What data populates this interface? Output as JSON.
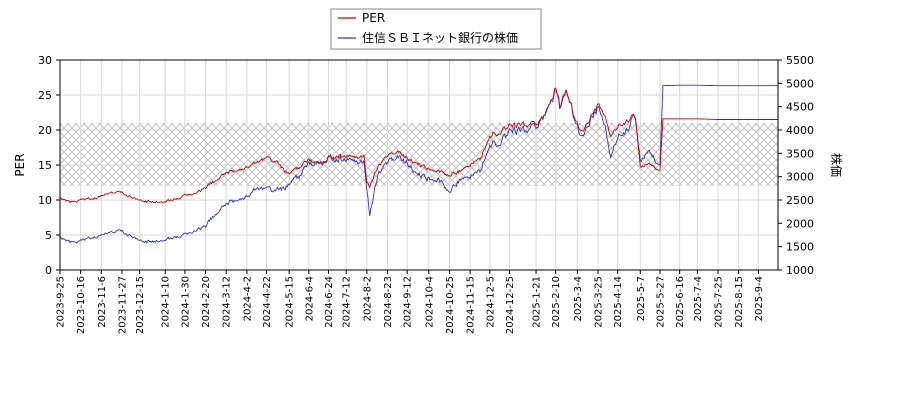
{
  "chart_data": {
    "type": "line",
    "legend": {
      "placement": "top-center",
      "entries": [
        {
          "name": "PER",
          "color": "#cc0000"
        },
        {
          "name": "住信ＳＢＩネット銀行の株価",
          "color": "#3333cc"
        }
      ]
    },
    "left_axis": {
      "label": "PER",
      "ylim": [
        0,
        30
      ],
      "ticks": [
        "0",
        "5",
        "10",
        "15",
        "20",
        "25",
        "30"
      ]
    },
    "right_axis": {
      "label": "株価",
      "ylim": [
        1000,
        5500
      ],
      "ticks": [
        "1000",
        "1500",
        "2000",
        "2500",
        "3000",
        "3500",
        "4000",
        "4500",
        "5000",
        "5500"
      ]
    },
    "x_axis": {
      "range": [
        "2023-09-25",
        "2025-09-24"
      ],
      "tick_labels": [
        "2023-9-25",
        "2023-10-16",
        "2023-11-6",
        "2023-11-27",
        "2023-12-15",
        "2024-1-10",
        "2024-1-30",
        "2024-2-20",
        "2024-3-12",
        "2024-4-2",
        "2024-4-22",
        "2024-5-15",
        "2024-6-4",
        "2024-6-24",
        "2024-7-12",
        "2024-8-2",
        "2024-8-23",
        "2024-9-12",
        "2024-10-4",
        "2024-10-25",
        "2024-11-15",
        "2024-12-5",
        "2024-12-25",
        "2025-1-21",
        "2025-2-10",
        "2025-3-4",
        "2025-3-25",
        "2025-4-14",
        "2025-5-7",
        "2025-5-27",
        "2025-6-16",
        "2025-7-4",
        "2025-7-25",
        "2025-8-15",
        "2025-9-4"
      ]
    },
    "grid": true,
    "hatched_band": {
      "axis": "left",
      "from": 12,
      "to": 21
    },
    "series": [
      {
        "name": "PER",
        "axis": "left",
        "color": "#cc0000",
        "x": [
          "2023-09-25",
          "2023-10-05",
          "2023-10-16",
          "2023-10-27",
          "2023-11-06",
          "2023-11-16",
          "2023-11-27",
          "2023-12-06",
          "2023-12-15",
          "2023-12-26",
          "2024-01-10",
          "2024-01-20",
          "2024-01-30",
          "2024-02-10",
          "2024-02-20",
          "2024-03-01",
          "2024-03-12",
          "2024-03-22",
          "2024-04-02",
          "2024-04-12",
          "2024-04-22",
          "2024-05-02",
          "2024-05-15",
          "2024-05-25",
          "2024-06-04",
          "2024-06-14",
          "2024-06-24",
          "2024-07-03",
          "2024-07-12",
          "2024-07-22",
          "2024-07-30",
          "2024-08-02",
          "2024-08-05",
          "2024-08-13",
          "2024-08-23",
          "2024-09-02",
          "2024-09-12",
          "2024-09-22",
          "2024-10-04",
          "2024-10-14",
          "2024-10-25",
          "2024-11-05",
          "2024-11-15",
          "2024-11-25",
          "2024-12-05",
          "2024-12-15",
          "2024-12-25",
          "2025-01-08",
          "2025-01-21",
          "2025-01-31",
          "2025-02-10",
          "2025-02-14",
          "2025-02-20",
          "2025-03-04",
          "2025-03-10",
          "2025-03-18",
          "2025-03-25",
          "2025-04-01",
          "2025-04-07",
          "2025-04-14",
          "2025-04-24",
          "2025-05-02",
          "2025-05-07",
          "2025-05-15",
          "2025-05-22",
          "2025-05-27",
          "2025-05-30",
          "2025-06-16",
          "2025-07-04",
          "2025-07-25",
          "2025-08-15",
          "2025-09-04",
          "2025-09-24"
        ],
        "values": [
          10.3,
          9.6,
          10.0,
          10.2,
          10.6,
          11.0,
          11.0,
          10.6,
          9.8,
          9.7,
          9.8,
          10.1,
          10.6,
          11.0,
          11.8,
          12.8,
          13.8,
          14.2,
          14.8,
          15.4,
          15.8,
          15.4,
          13.6,
          14.6,
          15.8,
          15.2,
          16.0,
          16.2,
          16.4,
          16.0,
          16.2,
          12.5,
          12.0,
          14.8,
          16.5,
          16.8,
          16.0,
          15.2,
          14.4,
          14.0,
          13.6,
          14.2,
          15.0,
          15.8,
          19.2,
          19.8,
          20.5,
          20.8,
          21.0,
          22.0,
          26.0,
          23.0,
          25.5,
          21.0,
          19.5,
          22.0,
          23.5,
          22.5,
          19.0,
          20.5,
          21.5,
          22.0,
          15.0,
          15.0,
          14.8,
          14.4,
          21.6,
          21.6,
          21.6,
          21.5,
          21.5,
          21.5,
          21.5
        ]
      },
      {
        "name": "住信ＳＢＩネット銀行の株価",
        "axis": "right",
        "color": "#3333cc",
        "x": [
          "2023-09-25",
          "2023-10-05",
          "2023-10-16",
          "2023-10-27",
          "2023-11-06",
          "2023-11-16",
          "2023-11-27",
          "2023-12-06",
          "2023-12-15",
          "2023-12-26",
          "2024-01-10",
          "2024-01-20",
          "2024-01-30",
          "2024-02-10",
          "2024-02-20",
          "2024-03-01",
          "2024-03-12",
          "2024-03-22",
          "2024-04-02",
          "2024-04-12",
          "2024-04-22",
          "2024-05-02",
          "2024-05-15",
          "2024-05-25",
          "2024-06-04",
          "2024-06-14",
          "2024-06-24",
          "2024-07-03",
          "2024-07-12",
          "2024-07-22",
          "2024-07-30",
          "2024-08-02",
          "2024-08-05",
          "2024-08-13",
          "2024-08-23",
          "2024-09-02",
          "2024-09-12",
          "2024-09-22",
          "2024-10-04",
          "2024-10-14",
          "2024-10-25",
          "2024-11-05",
          "2024-11-15",
          "2024-11-25",
          "2024-12-05",
          "2024-12-15",
          "2024-12-25",
          "2025-01-08",
          "2025-01-21",
          "2025-01-31",
          "2025-02-10",
          "2025-02-14",
          "2025-02-20",
          "2025-03-04",
          "2025-03-10",
          "2025-03-18",
          "2025-03-25",
          "2025-04-01",
          "2025-04-07",
          "2025-04-14",
          "2025-04-24",
          "2025-05-02",
          "2025-05-07",
          "2025-05-15",
          "2025-05-22",
          "2025-05-27",
          "2025-05-30",
          "2025-06-16",
          "2025-07-04",
          "2025-07-25",
          "2025-08-15",
          "2025-09-04",
          "2025-09-24"
        ],
        "values": [
          1700,
          1580,
          1620,
          1700,
          1750,
          1800,
          1820,
          1760,
          1600,
          1600,
          1650,
          1700,
          1750,
          1850,
          1950,
          2200,
          2400,
          2500,
          2600,
          2750,
          2700,
          2700,
          2800,
          3000,
          3300,
          3250,
          3400,
          3350,
          3400,
          3300,
          3300,
          2700,
          2200,
          3050,
          3350,
          3400,
          3300,
          3050,
          2950,
          2900,
          2700,
          2950,
          3000,
          3100,
          3700,
          3750,
          3950,
          4000,
          4100,
          4300,
          4850,
          4500,
          4850,
          4100,
          3800,
          4250,
          4450,
          4200,
          3400,
          3850,
          4050,
          4300,
          3400,
          3500,
          3400,
          3300,
          4950,
          4960,
          4960,
          4950,
          4950,
          4950,
          4950
        ]
      }
    ]
  }
}
